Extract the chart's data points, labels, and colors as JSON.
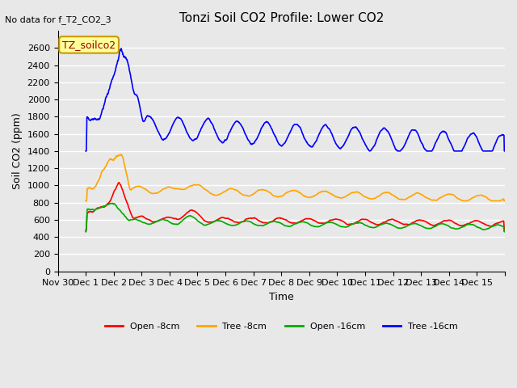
{
  "title": "Tonzi Soil CO2 Profile: Lower CO2",
  "no_data_text": "No data for f_T2_CO2_3",
  "xlabel": "Time",
  "ylabel": "Soil CO2 (ppm)",
  "ylim": [
    0,
    2800
  ],
  "yticks": [
    0,
    200,
    400,
    600,
    800,
    1000,
    1200,
    1400,
    1600,
    1800,
    2000,
    2200,
    2400,
    2600
  ],
  "xtick_positions": [
    -1,
    0,
    1,
    2,
    3,
    4,
    5,
    6,
    7,
    8,
    9,
    10,
    11,
    12,
    13,
    14,
    15
  ],
  "xtick_labels": [
    "Nov 30",
    "Dec 1",
    "Dec 2",
    "Dec 3",
    "Dec 4",
    "Dec 5",
    "Dec 6",
    "Dec 7",
    "Dec 8",
    "Dec 9",
    "Dec 10",
    "Dec 11",
    "Dec 12",
    "Dec 13",
    "Dec 14",
    "Dec 15",
    ""
  ],
  "bg_color": "#e8e8e8",
  "plot_bg_color": "#e8e8e8",
  "grid_color": "#ffffff",
  "annotation_text": "TZ_soilco2",
  "annotation_bbox_color": "#ffff99",
  "annotation_border_color": "#cc9900",
  "series": [
    {
      "name": "Open -8cm",
      "color": "#ff0000"
    },
    {
      "name": "Tree -8cm",
      "color": "#ffa500"
    },
    {
      "name": "Open -16cm",
      "color": "#00aa00"
    },
    {
      "name": "Tree -16cm",
      "color": "#0000ff"
    }
  ]
}
